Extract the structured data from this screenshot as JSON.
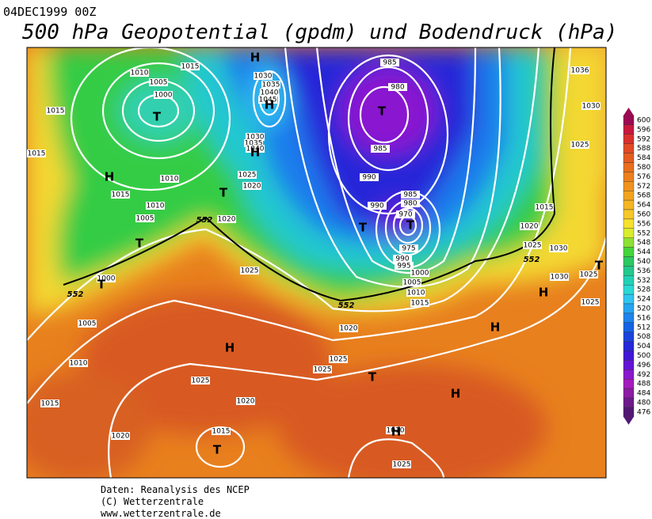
{
  "header": {
    "date": "04DEC1999 00Z",
    "title": "500 hPa Geopotential (gpdm) und Bodendruck (hPa)"
  },
  "colorbar": {
    "levels": [
      600,
      596,
      592,
      588,
      584,
      580,
      576,
      572,
      568,
      564,
      560,
      556,
      552,
      548,
      544,
      540,
      536,
      532,
      528,
      524,
      520,
      516,
      512,
      508,
      504,
      500,
      496,
      492,
      488,
      484,
      480,
      476
    ],
    "colors": [
      "#9c0a52",
      "#c8183c",
      "#d8302c",
      "#e04a24",
      "#e45c20",
      "#e86e1e",
      "#ec801e",
      "#f0921e",
      "#f2a420",
      "#f4b624",
      "#f6c82a",
      "#f6e030",
      "#d8ec30",
      "#8ee034",
      "#44d43c",
      "#2cc860",
      "#24c88c",
      "#24d0b4",
      "#2cd8d4",
      "#30c4f0",
      "#24a4f0",
      "#1c84ec",
      "#1464e4",
      "#1a44dc",
      "#2428d8",
      "#4018d4",
      "#6414d4",
      "#8818cc",
      "#a41cbc",
      "#8c1ca4",
      "#6e1a8c",
      "#521874"
    ]
  },
  "map": {
    "pressure_labels": [
      1015,
      1010,
      1005,
      1000,
      1015,
      1015,
      1010,
      1015,
      1010,
      1005,
      1020,
      1000,
      1005,
      1010,
      1015,
      1020,
      1025,
      1020,
      1015,
      1025,
      1020,
      1025,
      1025,
      1015,
      1010,
      1005,
      1000,
      995,
      990,
      975,
      970,
      980,
      985,
      990,
      990,
      985,
      980,
      985,
      1030,
      1035,
      1040,
      1045,
      1030,
      1035,
      1040,
      1025,
      1020,
      1020,
      1025,
      1015,
      1030,
      1030,
      1025,
      1025,
      1036,
      1030,
      1025,
      1010,
      1025
    ],
    "contour_labels": [
      552,
      552,
      552,
      552
    ],
    "centers": [
      "H",
      "T",
      "H",
      "H",
      "T",
      "T",
      "T",
      "T",
      "T",
      "T",
      "H",
      "T",
      "H",
      "H",
      "H",
      "T",
      "H",
      "T",
      "H"
    ]
  },
  "footer": {
    "line1": "Daten: Reanalysis des NCEP",
    "line2": "(C) Wetterzentrale",
    "line3": "www.wetterzentrale.de"
  }
}
